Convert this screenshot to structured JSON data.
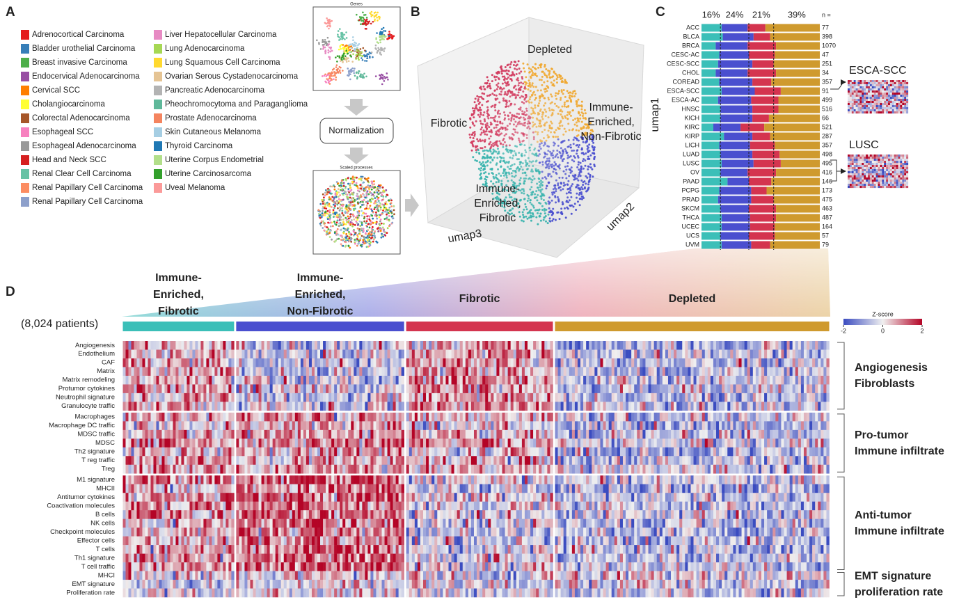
{
  "panel_labels": [
    "A",
    "B",
    "C",
    "D"
  ],
  "panel_a": {
    "legend_left": [
      {
        "name": "Adrenocortical Carcinoma",
        "color": "#e41a1c"
      },
      {
        "name": "Bladder urothelial Carcinoma",
        "color": "#377eb8"
      },
      {
        "name": "Breast invasive Carcinoma",
        "color": "#4daf4a"
      },
      {
        "name": "Endocervical Adenocarcinoma",
        "color": "#984ea3"
      },
      {
        "name": "Cervical SCC",
        "color": "#ff7f00"
      },
      {
        "name": "Cholangiocarcinoma",
        "color": "#ffff33"
      },
      {
        "name": "Colorectal Adenocarcinoma",
        "color": "#a65628"
      },
      {
        "name": "Esophageal SCC",
        "color": "#f781bf"
      },
      {
        "name": "Esophageal Adenocarcinoma",
        "color": "#999999"
      },
      {
        "name": "Head and Neck SCC",
        "color": "#d62020"
      },
      {
        "name": "Renal Clear Cell Carcinoma",
        "color": "#66c2a5"
      },
      {
        "name": "Renal Papillary Cell Carcinoma",
        "color": "#fc8d62"
      },
      {
        "name": "Renal Papillary Cell Carcinoma",
        "color": "#8da0cb"
      }
    ],
    "legend_right": [
      {
        "name": "Liver Hepatocellular Carcinoma",
        "color": "#e78ac3"
      },
      {
        "name": "Lung Adenocarcinoma",
        "color": "#a6d854"
      },
      {
        "name": "Lung Squamous Cell Carcinoma",
        "color": "#ffd92f"
      },
      {
        "name": "Ovarian Serous Cystadenocarcinoma",
        "color": "#e5c494"
      },
      {
        "name": "Pancreatic Adenocarcinoma",
        "color": "#b3b3b3"
      },
      {
        "name": "Pheochromocytoma and Paraganglioma",
        "color": "#5fb89a"
      },
      {
        "name": "Prostate Adenocarcinoma",
        "color": "#f4845f"
      },
      {
        "name": "Skin Cutaneous Melanoma",
        "color": "#a6cee3"
      },
      {
        "name": "Thyroid Carcinoma",
        "color": "#1f78b4"
      },
      {
        "name": "Uterine Corpus Endometrial",
        "color": "#b2df8a"
      },
      {
        "name": "Uterine Carcinosarcoma",
        "color": "#33a02c"
      },
      {
        "name": "Uveal Melanoma",
        "color": "#fb9a99"
      }
    ],
    "top_plot_title": "Genes",
    "flow_step": "Normalization",
    "bottom_plot_title": "Scaled processes"
  },
  "panel_b": {
    "axis_labels": [
      "umap1",
      "umap2",
      "umap3"
    ],
    "clusters": [
      {
        "lines": [
          "Depleted"
        ],
        "color": "#f0a830"
      },
      {
        "lines": [
          "Fibrotic"
        ],
        "color": "#d23a5e"
      },
      {
        "lines": [
          "Immune-",
          "Enriched,",
          "Non-Fibrotic"
        ],
        "color": "#4a4fcf"
      },
      {
        "lines": [
          "Immune-",
          "Enriched,",
          "Fibrotic"
        ],
        "color": "#37b3ad"
      }
    ]
  },
  "panel_c": {
    "type": "bar",
    "orientation": "horizontal",
    "stacked": true,
    "xlim": [
      0,
      100
    ],
    "overall": [
      {
        "value": 16,
        "label": "16%"
      },
      {
        "value": 24,
        "label": "24%"
      },
      {
        "value": 21,
        "label": "21%"
      },
      {
        "value": 39,
        "label": "39%"
      }
    ],
    "n_header": "n =",
    "categories": [
      "ACC",
      "BLCA",
      "BRCA",
      "CESC-AC",
      "CESC-SCC",
      "CHOL",
      "COREAD",
      "ESCA-SCC",
      "ESCA-AC",
      "HNSC",
      "KICH",
      "KIRC",
      "KIRP",
      "LICH",
      "LUAD",
      "LUSC",
      "OV",
      "PAAD",
      "PCPG",
      "PRAD",
      "SKCM",
      "THCA",
      "UCEC",
      "UCS",
      "UVM"
    ],
    "n": [
      77,
      398,
      1070,
      47,
      251,
      34,
      357,
      91,
      499,
      516,
      66,
      521,
      287,
      357,
      498,
      495,
      416,
      146,
      173,
      475,
      463,
      487,
      164,
      57,
      79
    ],
    "series": [
      {
        "color": "#3bbfb8",
        "values": [
          17,
          18,
          12,
          15,
          14,
          12,
          15,
          17,
          14,
          16,
          16,
          10,
          19,
          15,
          16,
          17,
          16,
          22,
          15,
          14,
          16,
          17,
          17,
          16,
          17
        ]
      },
      {
        "color": "#4a4fcf",
        "values": [
          22,
          26,
          27,
          25,
          29,
          27,
          28,
          28,
          28,
          27,
          27,
          23,
          24,
          26,
          27,
          27,
          23,
          18,
          27,
          28,
          24,
          24,
          24,
          24,
          25
        ]
      },
      {
        "color": "#d4344f",
        "values": [
          15,
          14,
          24,
          22,
          18,
          24,
          16,
          22,
          23,
          22,
          14,
          20,
          15,
          21,
          23,
          23,
          24,
          19,
          13,
          19,
          23,
          22,
          21,
          22,
          16
        ]
      },
      {
        "color": "#cf9a2e",
        "values": [
          46,
          42,
          37,
          38,
          39,
          37,
          41,
          33,
          35,
          35,
          43,
          47,
          42,
          38,
          34,
          33,
          37,
          41,
          45,
          39,
          37,
          37,
          38,
          38,
          42
        ]
      }
    ],
    "insets": [
      "ESCA-SCC",
      "LUSC"
    ]
  },
  "panel_d": {
    "patients": "(8,024 patients)",
    "clusters": [
      {
        "lines": [
          "Immune-",
          "Enriched,",
          "Fibrotic"
        ],
        "color": "#3bbfb8"
      },
      {
        "lines": [
          "Immune-",
          "Enriched,",
          "Non-Fibrotic"
        ],
        "color": "#4a4fcf"
      },
      {
        "lines": [
          "Fibrotic"
        ],
        "color": "#d4344f"
      },
      {
        "lines": [
          "Depleted"
        ],
        "color": "#cf9a2e"
      }
    ],
    "colorbar": {
      "title": "Z-score",
      "lim": [
        -2,
        2
      ],
      "ticks": [
        -2,
        0,
        2
      ]
    },
    "groups": [
      {
        "lines": [
          "Angiogenesis",
          "Fibroblasts"
        ],
        "color": "#c8203f",
        "rows": [
          "Angiogenesis",
          "Endothelium",
          "CAF",
          "Matrix",
          "Matrix remodeling",
          "Protumor cytokines",
          "Neutrophil signature",
          "Granulocyte traffic"
        ]
      },
      {
        "lines": [
          "Pro-tumor",
          "Immune infiltrate"
        ],
        "color": "#f08030",
        "rows": [
          "Macrophages",
          "Macrophage DC traffic",
          "MDSC traffic",
          "MDSC",
          "Th2 signature",
          "T reg traffic",
          "Treg"
        ]
      },
      {
        "lines": [
          "Anti-tumor",
          "Immune infiltrate"
        ],
        "color": "#1f77c8",
        "rows": [
          "M1 signature",
          "MHCII",
          "Antitumor cytokines",
          "Coactivation molecules",
          "B cells",
          "NK cells",
          "Checkpoint molecules",
          "Effector cells",
          "T cells",
          "Th1 signature",
          "T cell traffic"
        ]
      },
      {
        "lines": [
          "EMT signature",
          "proliferation rate"
        ],
        "color": "#7a30a0",
        "rows": [
          "MHCI",
          "EMT signature",
          "Proliferation rate"
        ]
      }
    ]
  }
}
